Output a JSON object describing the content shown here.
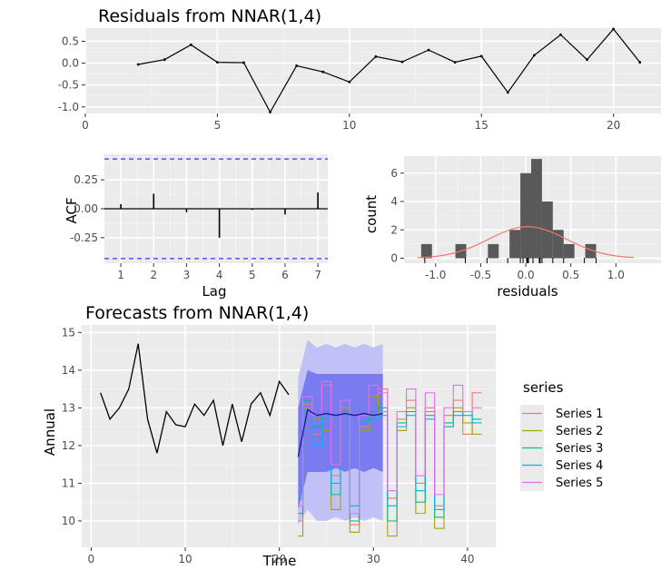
{
  "chart_data": [
    {
      "type": "line",
      "title": "Residuals from NNAR(1,4)",
      "xlabel": "",
      "ylabel": "",
      "xlim": [
        0,
        21.8
      ],
      "ylim": [
        -1.15,
        0.8
      ],
      "xticks": [
        0,
        5,
        10,
        15,
        20
      ],
      "yticks": [
        -1.0,
        -0.5,
        0.0,
        0.5
      ],
      "ytick_labels": [
        "-1.0",
        "-0.5",
        "0.0",
        "0.5"
      ],
      "grid": true,
      "x": [
        2,
        3,
        4,
        5,
        6,
        7,
        8,
        9,
        10,
        11,
        12,
        13,
        14,
        15,
        16,
        17,
        18,
        19,
        20,
        21
      ],
      "y": [
        -0.03,
        0.08,
        0.42,
        0.02,
        0.01,
        -1.12,
        -0.06,
        -0.2,
        -0.43,
        0.15,
        0.03,
        0.3,
        0.02,
        0.16,
        -0.67,
        0.18,
        0.65,
        0.08,
        0.78,
        0.02
      ]
    },
    {
      "type": "bar",
      "title": "",
      "xlabel": "Lag",
      "ylabel": "ACF",
      "xlim": [
        0.5,
        7.3
      ],
      "ylim": [
        -0.47,
        0.47
      ],
      "xticks": [
        1,
        2,
        3,
        4,
        5,
        6,
        7
      ],
      "yticks": [
        -0.25,
        0.0,
        0.25
      ],
      "ytick_labels": [
        "-0.25",
        "0.00",
        "0.25"
      ],
      "grid": true,
      "categories": [
        1,
        2,
        3,
        4,
        5,
        6,
        7
      ],
      "values": [
        0.04,
        0.13,
        -0.03,
        -0.25,
        -0.01,
        -0.05,
        0.14
      ],
      "bounds": [
        -0.43,
        0.43
      ],
      "bound_color": "#3333ff"
    },
    {
      "type": "bar",
      "title": "",
      "xlabel": "residuals",
      "ylabel": "count",
      "xlim": [
        -1.35,
        1.5
      ],
      "ylim": [
        -0.35,
        7.2
      ],
      "xticks": [
        -1.0,
        -0.5,
        0.0,
        0.5,
        1.0
      ],
      "xtick_labels": [
        "-1.0",
        "-0.5",
        "0.0",
        "0.5",
        "1.0"
      ],
      "yticks": [
        0,
        2,
        4,
        6
      ],
      "grid": true,
      "bins": [
        {
          "x0": -1.16,
          "x1": -1.04,
          "count": 1
        },
        {
          "x0": -0.78,
          "x1": -0.66,
          "count": 1
        },
        {
          "x0": -0.42,
          "x1": -0.3,
          "count": 1
        },
        {
          "x0": -0.18,
          "x1": -0.06,
          "count": 2
        },
        {
          "x0": -0.06,
          "x1": 0.06,
          "count": 6
        },
        {
          "x0": 0.06,
          "x1": 0.18,
          "count": 7
        },
        {
          "x0": 0.18,
          "x1": 0.3,
          "count": 4
        },
        {
          "x0": 0.3,
          "x1": 0.42,
          "count": 2
        },
        {
          "x0": 0.42,
          "x1": 0.54,
          "count": 1
        },
        {
          "x0": 0.66,
          "x1": 0.78,
          "count": 1
        }
      ],
      "density_curve": {
        "mean": 0.02,
        "sd": 0.43,
        "n": 20,
        "binwidth": 0.12,
        "color": "#f8766d"
      },
      "rug": [
        -1.12,
        -0.67,
        -0.43,
        -0.2,
        -0.06,
        -0.03,
        0.01,
        0.02,
        0.02,
        0.03,
        0.08,
        0.08,
        0.15,
        0.16,
        0.18,
        0.3,
        0.42,
        0.65,
        0.78
      ],
      "bar_color": "#595959"
    },
    {
      "type": "line",
      "title": "Forecasts from NNAR(1,4)",
      "xlabel": "Time",
      "ylabel": "Annual",
      "xlim": [
        -1,
        43
      ],
      "ylim": [
        9.3,
        15.2
      ],
      "xticks": [
        0,
        10,
        20,
        30,
        40
      ],
      "yticks": [
        10,
        11,
        12,
        13,
        14,
        15
      ],
      "grid": true,
      "legend": {
        "title": "series",
        "position": "right"
      },
      "history": {
        "x": [
          1,
          2,
          3,
          4,
          5,
          6,
          7,
          8,
          9,
          10,
          11,
          12,
          13,
          14,
          15,
          16,
          17,
          18,
          19,
          20,
          21
        ],
        "y": [
          13.4,
          12.7,
          13.0,
          13.5,
          14.7,
          12.7,
          11.8,
          12.9,
          12.55,
          12.5,
          13.1,
          12.8,
          13.2,
          12.0,
          13.1,
          12.1,
          13.1,
          13.4,
          12.8,
          13.7,
          13.35
        ]
      },
      "forecast_x": [
        22,
        23,
        24,
        25,
        26,
        27,
        28,
        29,
        30,
        31,
        32,
        33,
        34,
        35,
        36,
        37,
        38,
        39,
        40,
        41
      ],
      "mean": [
        11.7,
        12.95,
        12.8,
        12.85,
        12.8,
        12.85,
        12.8,
        12.85,
        12.8,
        12.85,
        12.7,
        12.65,
        12.7,
        12.75,
        12.8,
        12.6,
        12.75,
        12.6,
        12.8,
        12.75
      ],
      "pi80": {
        "lower": [
          10.3,
          11.3,
          11.3,
          11.3,
          11.4,
          11.3,
          11.4,
          11.3,
          11.4,
          11.3
        ],
        "upper": [
          13.0,
          14.0,
          13.9,
          13.9,
          13.9,
          13.9,
          13.9,
          13.9,
          13.9,
          13.9
        ]
      },
      "pi95": {
        "lower": [
          9.9,
          10.3,
          10.0,
          10.0,
          10.1,
          10.0,
          10.1,
          10.0,
          10.1,
          10.0
        ],
        "upper": [
          13.8,
          14.8,
          14.6,
          14.7,
          14.6,
          14.7,
          14.6,
          14.7,
          14.6,
          14.7
        ]
      },
      "series": [
        {
          "name": "Series 1",
          "color": "#f8766d",
          "y": [
            10.0,
            13.1,
            12.3,
            13.6,
            11.2,
            13.0,
            9.9,
            12.5,
            12.8,
            13.5,
            10.6,
            12.7,
            13.2,
            11.0,
            13.0,
            10.4,
            12.8,
            13.2,
            12.3,
            13.4
          ]
        },
        {
          "name": "Series 2",
          "color": "#a3a500",
          "y": [
            9.6,
            13.0,
            12.7,
            12.4,
            10.3,
            13.0,
            9.7,
            12.4,
            13.3,
            12.9,
            9.6,
            12.4,
            13.0,
            10.2,
            12.9,
            9.8,
            12.5,
            13.0,
            12.6,
            12.3
          ]
        },
        {
          "name": "Series 3",
          "color": "#00bf7d",
          "y": [
            10.2,
            13.2,
            12.5,
            12.9,
            10.7,
            12.9,
            10.0,
            12.6,
            12.9,
            13.0,
            10.0,
            12.6,
            12.9,
            10.5,
            12.8,
            10.1,
            12.6,
            12.9,
            12.8,
            12.7
          ]
        },
        {
          "name": "Series 4",
          "color": "#00b0f6",
          "y": [
            10.6,
            12.9,
            12.0,
            12.7,
            11.0,
            12.8,
            10.4,
            12.6,
            12.7,
            12.8,
            10.4,
            12.5,
            12.8,
            10.8,
            12.7,
            10.3,
            12.5,
            12.8,
            12.9,
            12.6
          ]
        },
        {
          "name": "Series 5",
          "color": "#e76bf3",
          "y": [
            10.4,
            13.3,
            12.8,
            13.7,
            11.5,
            13.2,
            10.2,
            12.8,
            13.6,
            13.4,
            10.8,
            12.9,
            13.5,
            11.2,
            13.4,
            10.7,
            13.0,
            13.6,
            12.9,
            13.0
          ]
        }
      ]
    }
  ]
}
